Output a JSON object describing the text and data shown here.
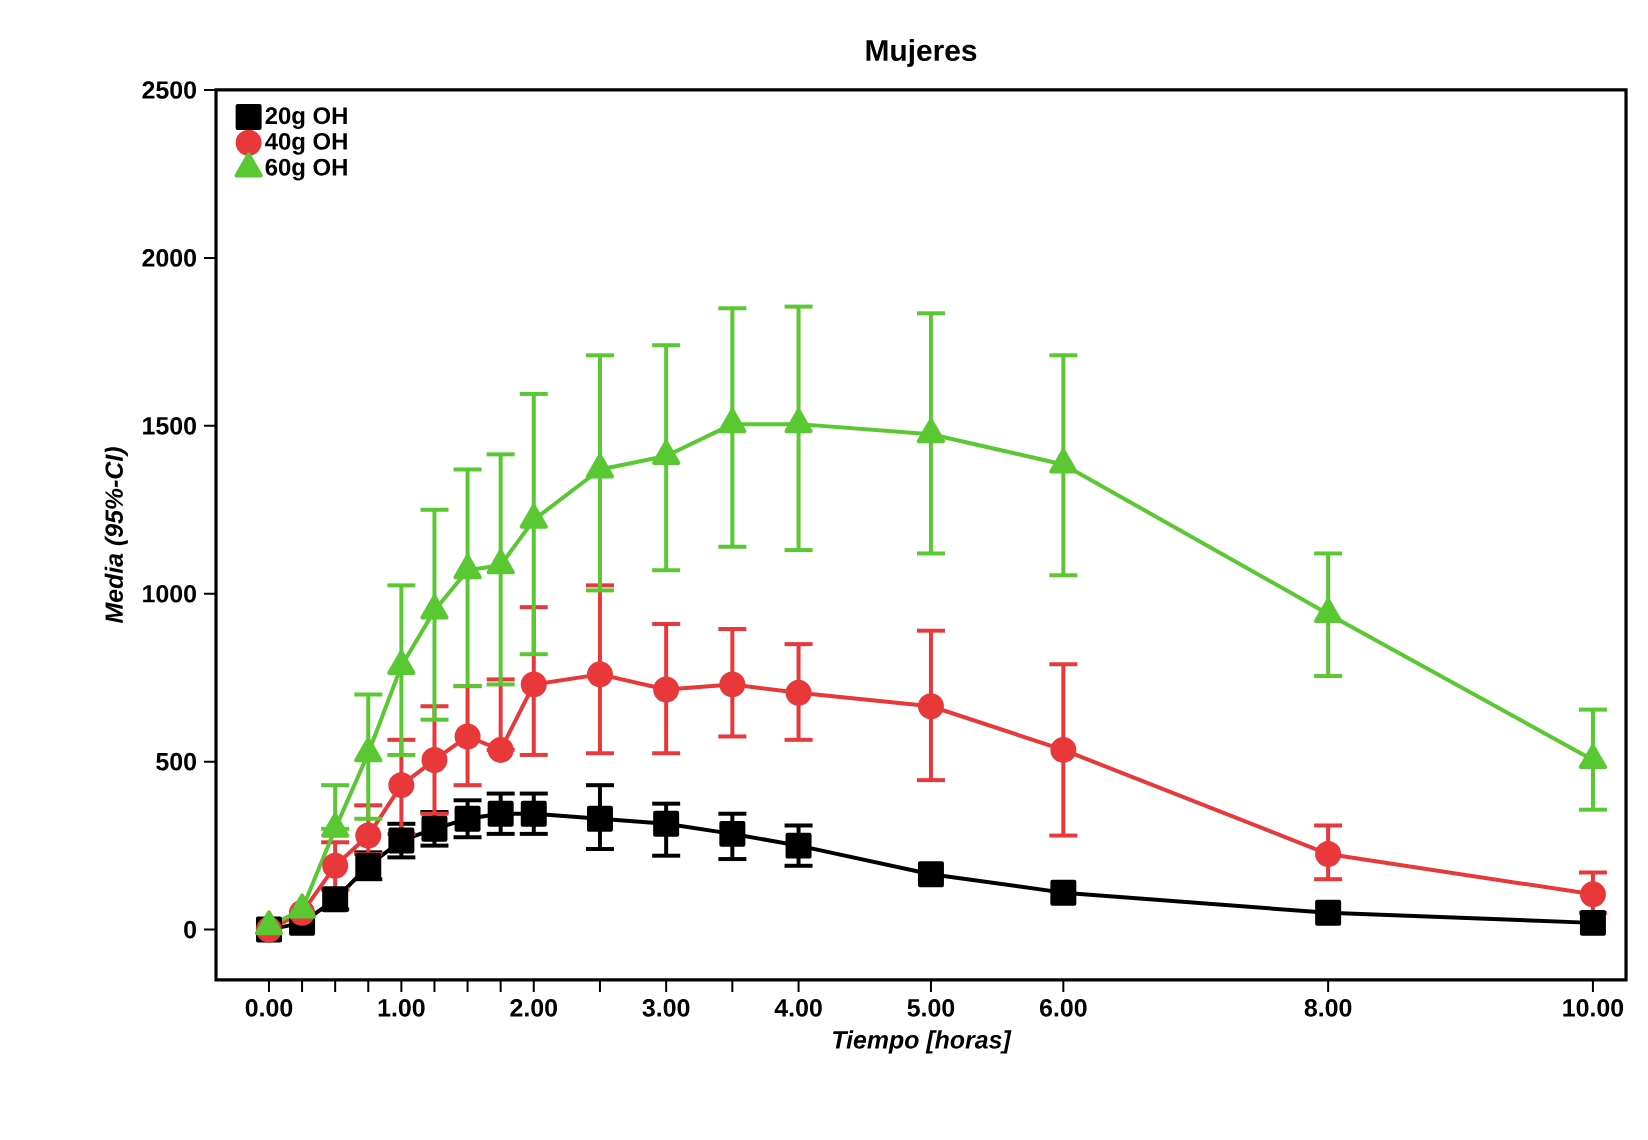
{
  "chart_data": {
    "type": "line",
    "title": "Mujeres",
    "xlabel": "Tiempo [horas]",
    "ylabel": "Media (95%-CI)",
    "x": [
      0,
      0.25,
      0.5,
      0.75,
      1,
      1.25,
      1.5,
      1.75,
      2,
      2.5,
      3,
      3.5,
      4,
      5,
      6,
      8,
      10
    ],
    "series": [
      {
        "name": "20g OH",
        "color": "#000000",
        "marker": "square",
        "values": [
          0,
          20,
          90,
          190,
          265,
          300,
          330,
          345,
          345,
          330,
          315,
          285,
          250,
          165,
          110,
          50,
          20
        ],
        "errors": [
          null,
          null,
          [
            60,
            120
          ],
          [
            150,
            230
          ],
          [
            215,
            315
          ],
          [
            250,
            350
          ],
          [
            275,
            385
          ],
          [
            285,
            405
          ],
          [
            285,
            405
          ],
          [
            240,
            430
          ],
          [
            220,
            375
          ],
          [
            210,
            345
          ],
          [
            190,
            310
          ],
          null,
          null,
          null,
          null
        ]
      },
      {
        "name": "40g OH",
        "color": "#e8383a",
        "marker": "circle",
        "values": [
          0,
          50,
          190,
          280,
          430,
          505,
          575,
          535,
          730,
          760,
          715,
          730,
          705,
          665,
          535,
          225,
          105
        ],
        "errors": [
          null,
          null,
          [
            120,
            260
          ],
          [
            225,
            370
          ],
          [
            285,
            565
          ],
          [
            345,
            665
          ],
          [
            430,
            725
          ],
          [
            535,
            745
          ],
          [
            520,
            960
          ],
          [
            525,
            1025
          ],
          [
            525,
            910
          ],
          [
            575,
            895
          ],
          [
            565,
            850
          ],
          [
            445,
            890
          ],
          [
            280,
            790
          ],
          [
            150,
            310
          ],
          [
            50,
            170
          ]
        ]
      },
      {
        "name": "60g OH",
        "color": "#5ac832",
        "marker": "triangle",
        "values": [
          10,
          60,
          300,
          525,
          785,
          950,
          1070,
          1085,
          1220,
          1370,
          1410,
          1505,
          1505,
          1475,
          1385,
          940,
          505
        ],
        "errors": [
          null,
          null,
          [
            300,
            430
          ],
          [
            330,
            700
          ],
          [
            520,
            1025
          ],
          [
            625,
            1250
          ],
          [
            725,
            1370
          ],
          [
            730,
            1415
          ],
          [
            820,
            1595
          ],
          [
            1010,
            1710
          ],
          [
            1070,
            1740
          ],
          [
            1140,
            1850
          ],
          [
            1130,
            1855
          ],
          [
            1120,
            1835
          ],
          [
            1055,
            1710
          ],
          [
            755,
            1120
          ],
          [
            357,
            655
          ]
        ]
      }
    ],
    "xlim": [
      -0.4,
      10.25
    ],
    "ylim": [
      -150,
      2500
    ],
    "xticks": [
      {
        "value": 0,
        "label": "0.00"
      },
      {
        "value": 0.25,
        "label": null
      },
      {
        "value": 0.5,
        "label": null
      },
      {
        "value": 0.75,
        "label": null
      },
      {
        "value": 1,
        "label": "1.00"
      },
      {
        "value": 1.25,
        "label": null
      },
      {
        "value": 1.5,
        "label": null
      },
      {
        "value": 1.75,
        "label": null
      },
      {
        "value": 2,
        "label": "2.00"
      },
      {
        "value": 2.5,
        "label": null
      },
      {
        "value": 3,
        "label": "3.00"
      },
      {
        "value": 3.5,
        "label": null
      },
      {
        "value": 4,
        "label": "4.00"
      },
      {
        "value": 5,
        "label": "5.00"
      },
      {
        "value": 6,
        "label": "6.00"
      },
      {
        "value": 8,
        "label": "8.00"
      },
      {
        "value": 10,
        "label": "10.00"
      }
    ],
    "yticks": [
      0,
      500,
      1000,
      1500,
      2000,
      2500
    ],
    "grid": false,
    "legend": "top left",
    "line_style": "solid"
  }
}
